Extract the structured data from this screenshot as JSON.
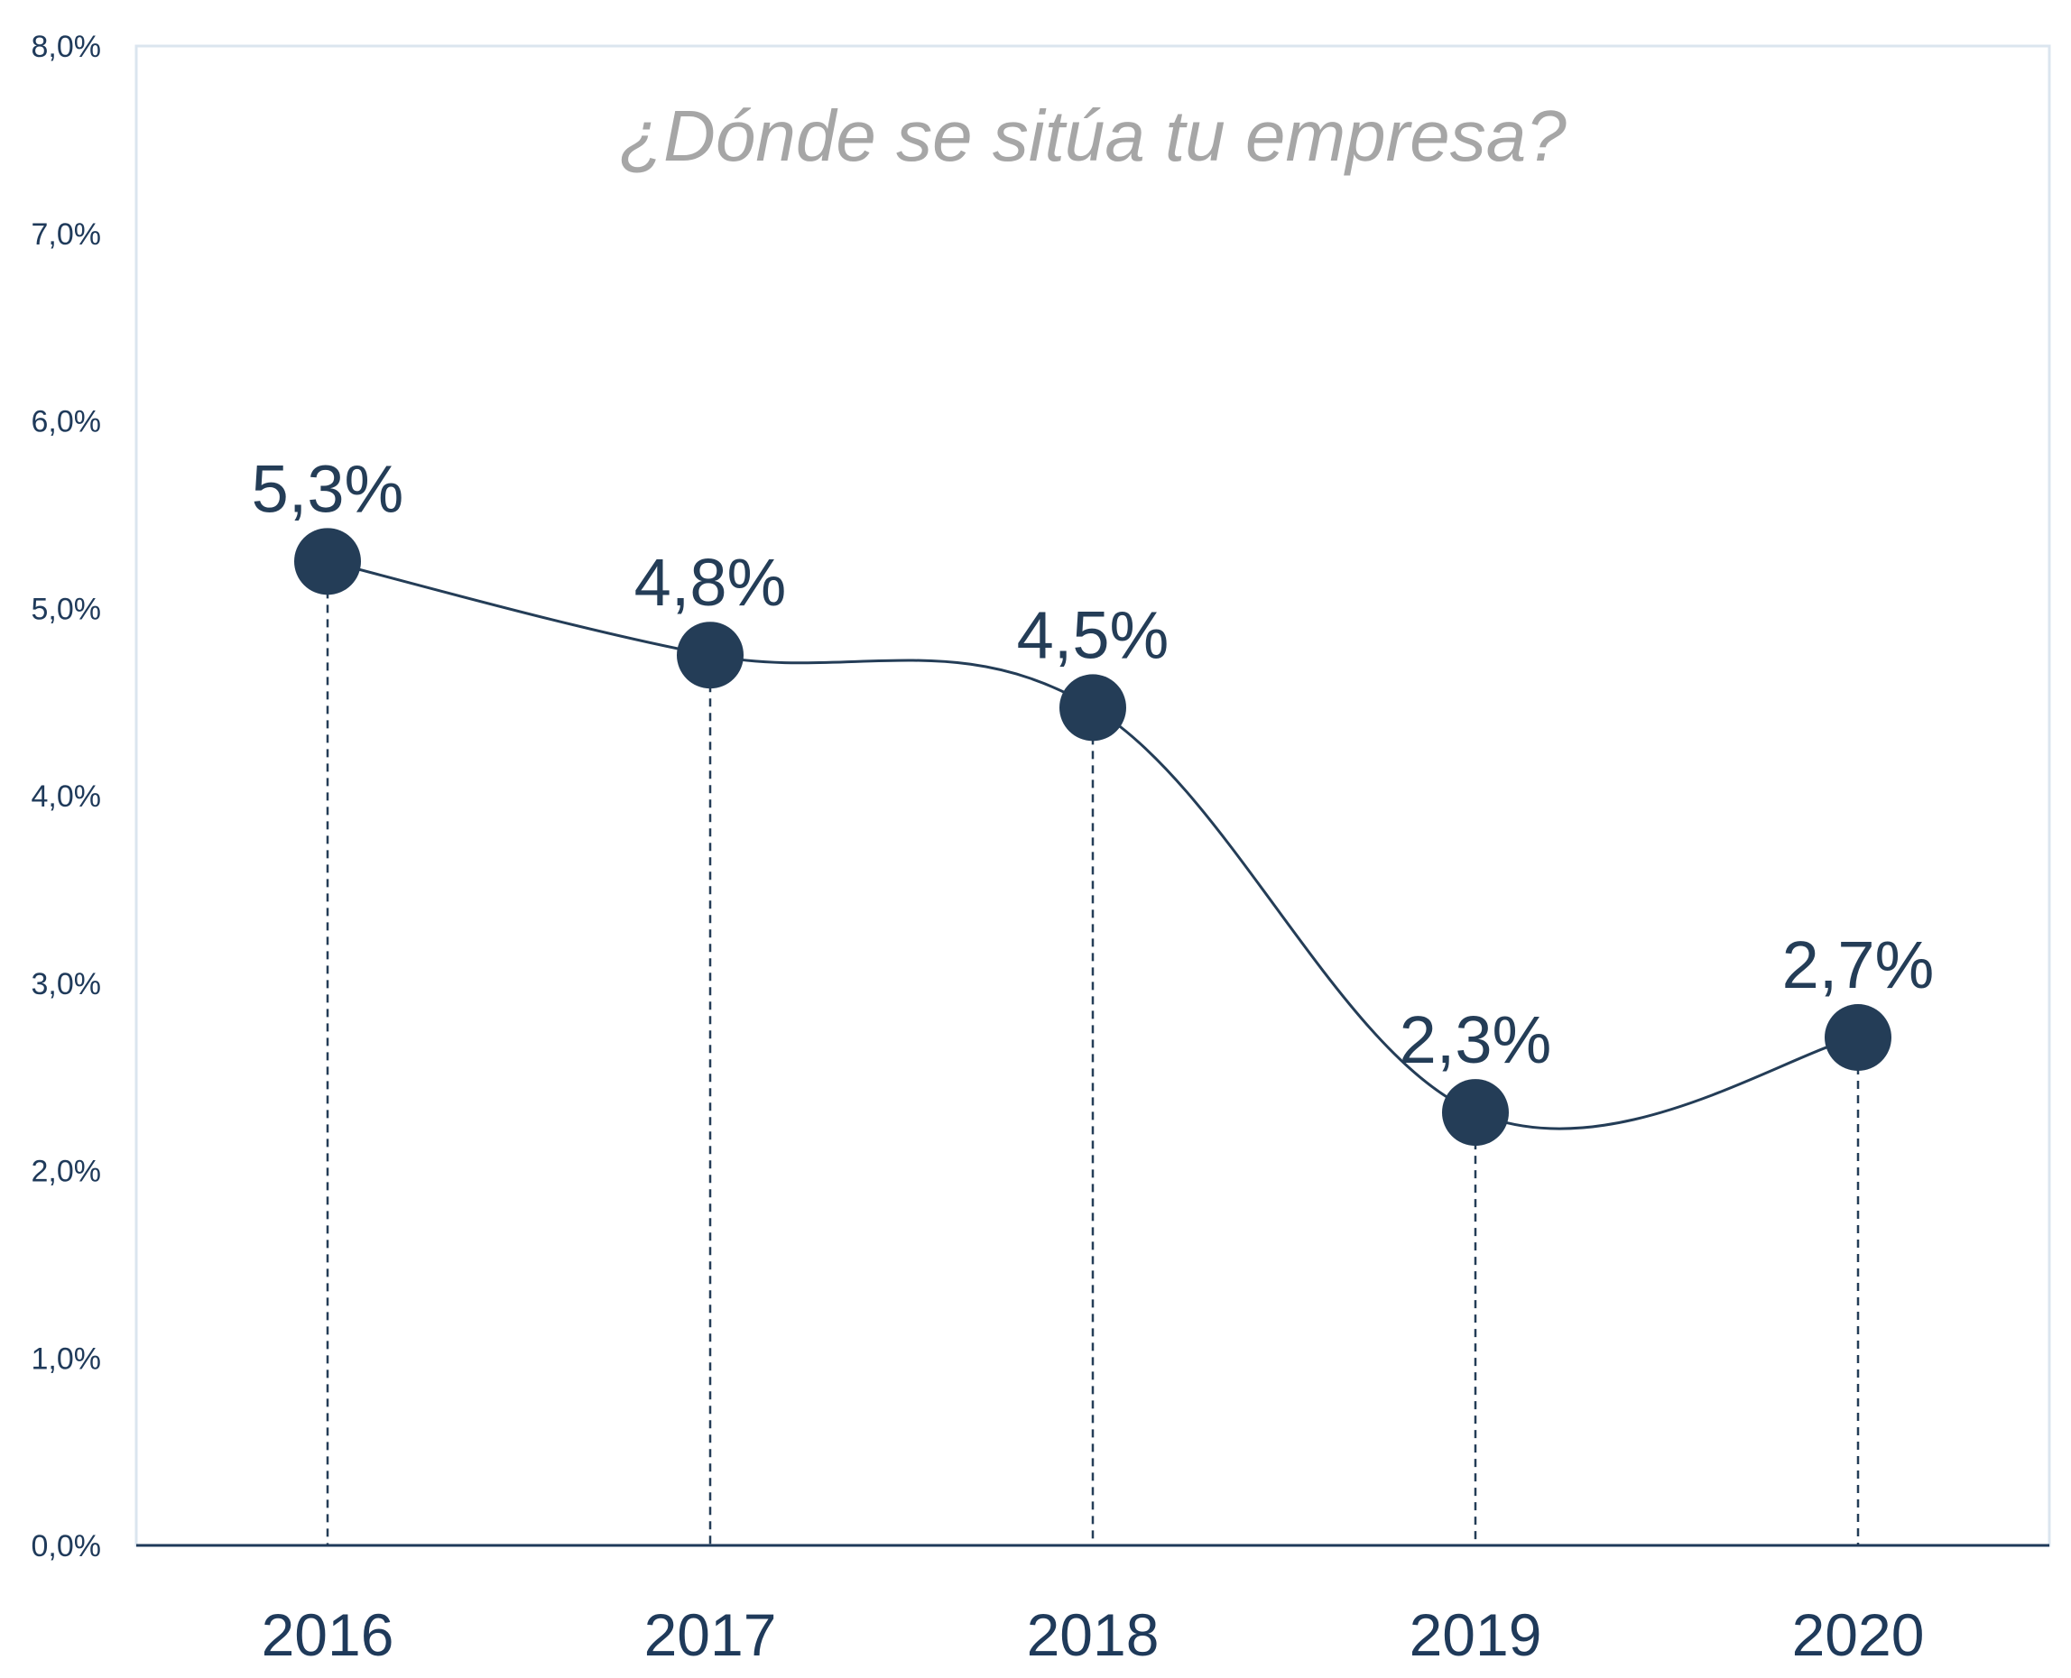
{
  "chart_data": {
    "type": "line",
    "title": "¿Dónde se sitúa tu empresa?",
    "categories": [
      "2016",
      "2017",
      "2018",
      "2019",
      "2020"
    ],
    "values": [
      5.25,
      4.75,
      4.47,
      2.31,
      2.71
    ],
    "data_labels": [
      "5,3%",
      "4,8%",
      "4,5%",
      "2,3%",
      "2,7%"
    ],
    "ylim": [
      0,
      8
    ],
    "yticks": [
      0,
      1,
      2,
      3,
      4,
      5,
      6,
      7,
      8
    ],
    "ytick_labels": [
      "0,0%",
      "1,0%",
      "2,0%",
      "3,0%",
      "4,0%",
      "5,0%",
      "6,0%",
      "7,0%",
      "8,0%"
    ],
    "xlabel": "",
    "ylabel": "",
    "grid": false,
    "line_style": "smooth",
    "drop_lines": "dashed",
    "colors": {
      "series": "#243d57",
      "title": "#a6a6a6",
      "axis": "#1f3a5a",
      "frame": "#dbe5ef"
    }
  }
}
